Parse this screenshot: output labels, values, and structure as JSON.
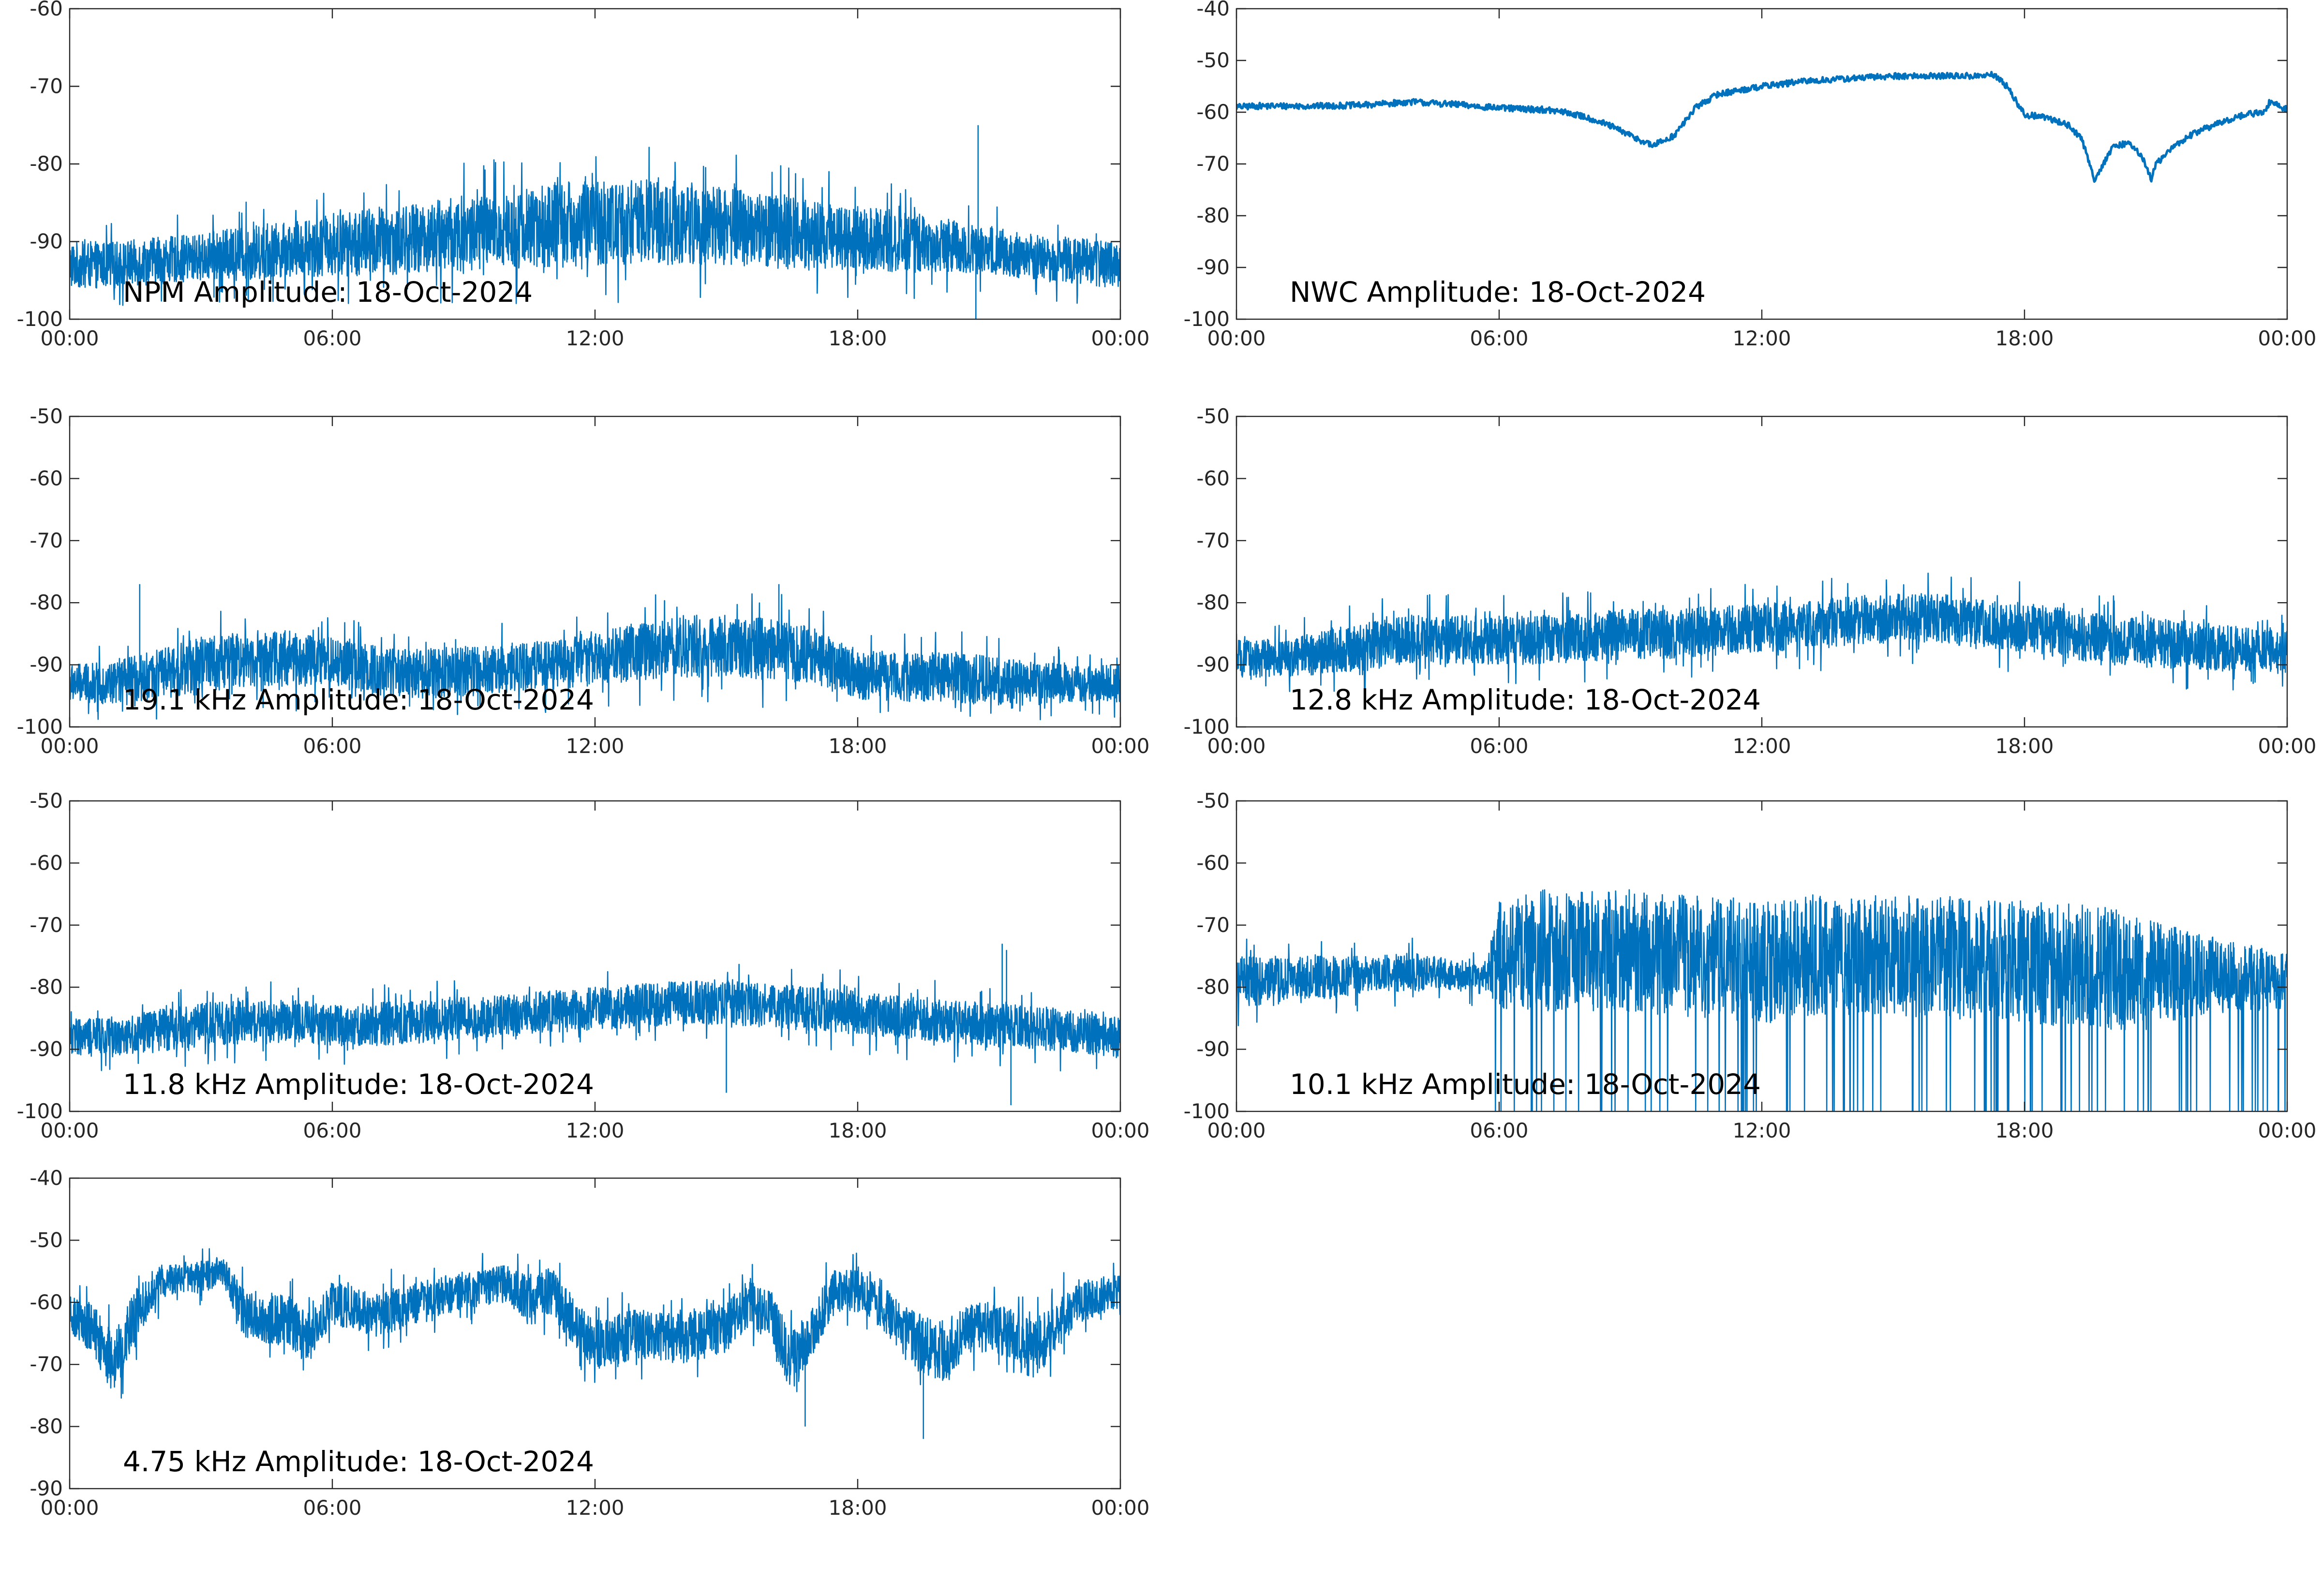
{
  "figure": {
    "trace_color": "#0072BD",
    "axis_color": "#262626"
  },
  "chart_data": [
    {
      "type": "line",
      "title": "NPM Amplitude: 18-Oct-2024",
      "xlabel": "",
      "ylabel": "",
      "xlim": [
        "00:00",
        "24:00"
      ],
      "xtick_labels": [
        "00:00",
        "06:00",
        "12:00",
        "18:00",
        "00:00"
      ],
      "ylim": [
        -100,
        -60
      ],
      "ytick_labels": [
        "-60",
        "-70",
        "-80",
        "-90",
        "-100"
      ],
      "grid": false,
      "series": [
        {
          "x_hours": [
            0,
            1,
            2,
            3,
            4,
            5,
            6,
            7,
            8,
            9,
            10,
            11,
            12,
            13,
            14,
            15,
            16,
            17,
            18,
            19,
            20,
            21,
            22,
            23,
            24
          ],
          "center": [
            -93,
            -93,
            -92.5,
            -92,
            -91.5,
            -91,
            -90.5,
            -90,
            -89.5,
            -89,
            -88.5,
            -88,
            -87.5,
            -87.5,
            -87.5,
            -88,
            -88.5,
            -89,
            -89.5,
            -90,
            -90.5,
            -91,
            -92,
            -92.5,
            -93
          ],
          "spread": [
            3,
            3,
            3,
            3,
            3.5,
            3.5,
            4,
            4.5,
            4.5,
            5,
            5,
            5.5,
            5.5,
            5.5,
            5.5,
            5,
            5,
            4.5,
            4,
            4,
            3.5,
            3,
            3,
            3,
            3
          ],
          "spikes": [
            {
              "x_hours": 20.75,
              "y": -75
            },
            {
              "x_hours": 20.7,
              "y": -100
            }
          ]
        }
      ]
    },
    {
      "type": "line",
      "title": "NWC Amplitude: 18-Oct-2024",
      "xlabel": "",
      "ylabel": "",
      "xlim": [
        "00:00",
        "24:00"
      ],
      "xtick_labels": [
        "00:00",
        "06:00",
        "12:00",
        "18:00",
        "00:00"
      ],
      "ylim": [
        -100,
        -40
      ],
      "ytick_labels": [
        "-40",
        "-50",
        "-60",
        "-70",
        "-80",
        "-90",
        "-100"
      ],
      "grid": false,
      "series": [
        {
          "x_hours": [
            0,
            0.5,
            1,
            2,
            3,
            4,
            5,
            6,
            7,
            7.5,
            8,
            8.5,
            9,
            9.5,
            10,
            10.5,
            11,
            12,
            13,
            14,
            15,
            16,
            17,
            17.3,
            17.6,
            18,
            18.5,
            19,
            19.3,
            19.6,
            20,
            20.3,
            20.5,
            20.7,
            20.9,
            21,
            21.5,
            22,
            23,
            23.5,
            23.6,
            24
          ],
          "center": [
            -59,
            -58.8,
            -58.8,
            -58.8,
            -58.6,
            -58,
            -58.5,
            -59.2,
            -59.5,
            -60,
            -61,
            -62.5,
            -64.5,
            -66.5,
            -64.5,
            -59,
            -56.5,
            -55,
            -54,
            -53.5,
            -53,
            -53,
            -53,
            -52.8,
            -55,
            -60.5,
            -61,
            -62.5,
            -65,
            -73,
            -67,
            -66,
            -66.5,
            -69,
            -73,
            -70,
            -66,
            -63.5,
            -60.5,
            -60,
            -58,
            -59.5
          ],
          "spread": [
            0.6
          ],
          "spikes": []
        }
      ]
    },
    {
      "type": "line",
      "title": "19.1 kHz Amplitude: 18-Oct-2024",
      "xlabel": "",
      "ylabel": "",
      "xlim": [
        "00:00",
        "24:00"
      ],
      "xtick_labels": [
        "00:00",
        "06:00",
        "12:00",
        "18:00",
        "00:00"
      ],
      "ylim": [
        -100,
        -50
      ],
      "ytick_labels": [
        "-50",
        "-60",
        "-70",
        "-80",
        "-90",
        "-100"
      ],
      "grid": false,
      "series": [
        {
          "x_hours": [
            0,
            1,
            2,
            3,
            4,
            5,
            6,
            7,
            8,
            9,
            10,
            11,
            12,
            13,
            14,
            15,
            16,
            17,
            17.5,
            18,
            19,
            20,
            21,
            22,
            23,
            24
          ],
          "center": [
            -93,
            -93,
            -91.5,
            -90,
            -89,
            -89,
            -89.5,
            -91,
            -91.5,
            -91,
            -90.5,
            -90,
            -89,
            -88,
            -87,
            -87,
            -87.5,
            -88.5,
            -90,
            -91.5,
            -92,
            -92,
            -92.5,
            -93,
            -93,
            -93
          ],
          "spread": [
            3,
            3.5,
            4,
            4.5,
            4.5,
            4.5,
            4,
            4,
            4,
            4,
            4,
            4,
            4.5,
            4.5,
            5,
            5,
            5,
            4.5,
            4,
            4,
            4,
            4,
            4,
            3.5,
            3,
            3
          ],
          "spikes": [
            {
              "x_hours": 1.6,
              "y": -77
            },
            {
              "x_hours": 16.2,
              "y": -77
            }
          ]
        }
      ]
    },
    {
      "type": "line",
      "title": "12.8 kHz Amplitude: 18-Oct-2024",
      "xlabel": "",
      "ylabel": "",
      "xlim": [
        "00:00",
        "24:00"
      ],
      "xtick_labels": [
        "00:00",
        "06:00",
        "12:00",
        "18:00",
        "00:00"
      ],
      "ylim": [
        -100,
        -50
      ],
      "ytick_labels": [
        "-50",
        "-60",
        "-70",
        "-80",
        "-90",
        "-100"
      ],
      "grid": false,
      "series": [
        {
          "x_hours": [
            0,
            1,
            2,
            3,
            4,
            5,
            6,
            7,
            8,
            9,
            10,
            11,
            12,
            13,
            14,
            15,
            16,
            17,
            18,
            19,
            20,
            21,
            22,
            23,
            24
          ],
          "center": [
            -89,
            -89,
            -88,
            -87,
            -86,
            -86,
            -86,
            -86,
            -85.5,
            -85,
            -85,
            -84.5,
            -84,
            -83.5,
            -83,
            -82.5,
            -82.5,
            -83.5,
            -84,
            -85,
            -86,
            -86.5,
            -87,
            -87.5,
            -88
          ],
          "spread": [
            3,
            3,
            3.5,
            4,
            4,
            4,
            4,
            4,
            4,
            4,
            4,
            4,
            4,
            4,
            4,
            4,
            4,
            4,
            4,
            4,
            4,
            4,
            4,
            3.5,
            3.5
          ],
          "spikes": []
        }
      ]
    },
    {
      "type": "line",
      "title": "11.8 kHz Amplitude: 18-Oct-2024",
      "xlabel": "",
      "ylabel": "",
      "xlim": [
        "00:00",
        "24:00"
      ],
      "xtick_labels": [
        "00:00",
        "06:00",
        "12:00",
        "18:00",
        "00:00"
      ],
      "ylim": [
        -100,
        -50
      ],
      "ytick_labels": [
        "-50",
        "-60",
        "-70",
        "-80",
        "-90",
        "-100"
      ],
      "grid": false,
      "series": [
        {
          "x_hours": [
            0,
            1,
            2,
            3,
            4,
            5,
            6,
            7,
            8,
            9,
            10,
            11,
            12,
            13,
            14,
            15,
            16,
            17,
            18,
            19,
            20,
            21,
            22,
            23,
            24
          ],
          "center": [
            -88,
            -88,
            -87,
            -86,
            -85.5,
            -85.5,
            -86,
            -86,
            -85.5,
            -85,
            -84.5,
            -84,
            -83.5,
            -83,
            -82.5,
            -82.5,
            -83,
            -83.5,
            -84,
            -85,
            -85.5,
            -86,
            -86.5,
            -87,
            -88
          ],
          "spread": [
            3,
            3,
            3.5,
            3.5,
            3.5,
            3.5,
            3.5,
            3.5,
            3.5,
            3.5,
            3.5,
            3.5,
            3.5,
            3.5,
            3.5,
            3.5,
            3.5,
            3.5,
            3.5,
            3.5,
            3.5,
            3.5,
            3.5,
            3.5,
            3.5
          ],
          "spikes": [
            {
              "x_hours": 21.3,
              "y": -73
            },
            {
              "x_hours": 21.4,
              "y": -74
            },
            {
              "x_hours": 15.0,
              "y": -97
            },
            {
              "x_hours": 21.5,
              "y": -99
            }
          ]
        }
      ]
    },
    {
      "type": "line",
      "title": "10.1 kHz Amplitude: 18-Oct-2024",
      "xlabel": "",
      "ylabel": "",
      "xlim": [
        "00:00",
        "24:00"
      ],
      "xtick_labels": [
        "00:00",
        "06:00",
        "12:00",
        "18:00",
        "00:00"
      ],
      "ylim": [
        -100,
        -50
      ],
      "ytick_labels": [
        "-50",
        "-60",
        "-70",
        "-80",
        "-90",
        "-100"
      ],
      "grid": false,
      "series": [
        {
          "x_hours": [
            0,
            1,
            2,
            3,
            4,
            5,
            5.7,
            6,
            7,
            8,
            9,
            10,
            11,
            12,
            13,
            14,
            15,
            16,
            17,
            18,
            19,
            20,
            21,
            22,
            23,
            24
          ],
          "center": [
            -79,
            -79,
            -78.5,
            -78,
            -77.5,
            -78,
            -79,
            -75,
            -74,
            -74,
            -74,
            -75,
            -75,
            -76,
            -75,
            -75,
            -75,
            -75,
            -75.5,
            -76,
            -76.5,
            -77,
            -78,
            -78,
            -78.5,
            -79
          ],
          "spread": [
            4,
            4,
            3.5,
            3,
            3,
            2.5,
            2.5,
            8,
            9,
            9,
            9,
            9,
            9,
            9,
            9,
            9,
            9,
            9,
            9,
            9,
            9,
            9,
            8,
            6,
            5,
            4
          ],
          "spikes": []
        }
      ]
    },
    {
      "type": "line",
      "title": "4.75 kHz Amplitude: 18-Oct-2024",
      "xlabel": "",
      "ylabel": "",
      "xlim": [
        "00:00",
        "24:00"
      ],
      "xtick_labels": [
        "00:00",
        "06:00",
        "12:00",
        "18:00",
        "00:00"
      ],
      "ylim": [
        -90,
        -40
      ],
      "ytick_labels": [
        "-40",
        "-50",
        "-60",
        "-70",
        "-80",
        "-90"
      ],
      "grid": false,
      "series": [
        {
          "x_hours": [
            0,
            0.5,
            1,
            1.5,
            2,
            2.5,
            3,
            3.5,
            4,
            5,
            5.5,
            6,
            7,
            8,
            9,
            10,
            10.5,
            11,
            11.5,
            12,
            13,
            14,
            15,
            15.5,
            16,
            16.5,
            17,
            17.5,
            18,
            18.5,
            19,
            19.5,
            20,
            20.5,
            21,
            21.5,
            22,
            22.5,
            23,
            23.5,
            24
          ],
          "center": [
            -62,
            -64,
            -70,
            -62,
            -57,
            -56,
            -56,
            -55,
            -62,
            -63,
            -66,
            -60,
            -62,
            -60,
            -58,
            -57,
            -60,
            -58,
            -63,
            -67,
            -65,
            -66,
            -64,
            -60,
            -62,
            -70,
            -64,
            -58,
            -58,
            -60,
            -64,
            -67,
            -68,
            -64,
            -64,
            -65,
            -68,
            -64,
            -60,
            -59,
            -58
          ],
          "spread": [
            3,
            4,
            5,
            4,
            3,
            2.5,
            2.5,
            2.5,
            4,
            4,
            4,
            3.5,
            3.5,
            3.5,
            3,
            3,
            4,
            4,
            4,
            4,
            4,
            4,
            4,
            4,
            4,
            5,
            4,
            3.5,
            3.5,
            4,
            4,
            5,
            5,
            4,
            4,
            4,
            5,
            4,
            3.5,
            3,
            3
          ],
          "spikes": [
            {
              "x_hours": 19.5,
              "y": -82
            },
            {
              "x_hours": 16.8,
              "y": -80
            }
          ]
        }
      ]
    }
  ]
}
